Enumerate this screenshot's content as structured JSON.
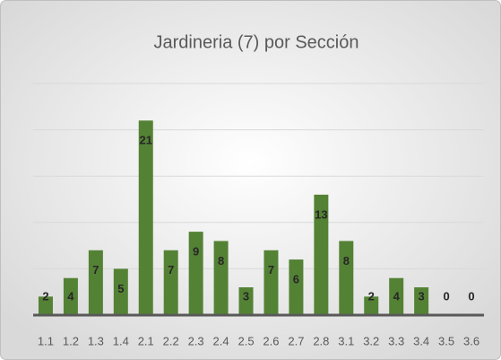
{
  "chart_data": {
    "type": "bar",
    "title": "Jardineria (7) por Sección",
    "categories": [
      "1.1",
      "1.2",
      "1.3",
      "1.4",
      "2.1",
      "2.2",
      "2.3",
      "2.4",
      "2.5",
      "2.6",
      "2.7",
      "2.8",
      "3.1",
      "3.2",
      "3.3",
      "3.4",
      "3.5",
      "3.6"
    ],
    "values": [
      2,
      4,
      7,
      5,
      21,
      7,
      9,
      8,
      3,
      7,
      6,
      13,
      8,
      2,
      4,
      3,
      0,
      0
    ],
    "color": "#548235",
    "ylim": [
      0,
      25
    ],
    "yticks": [
      0,
      5,
      10,
      15,
      20,
      25
    ],
    "grid": true
  }
}
